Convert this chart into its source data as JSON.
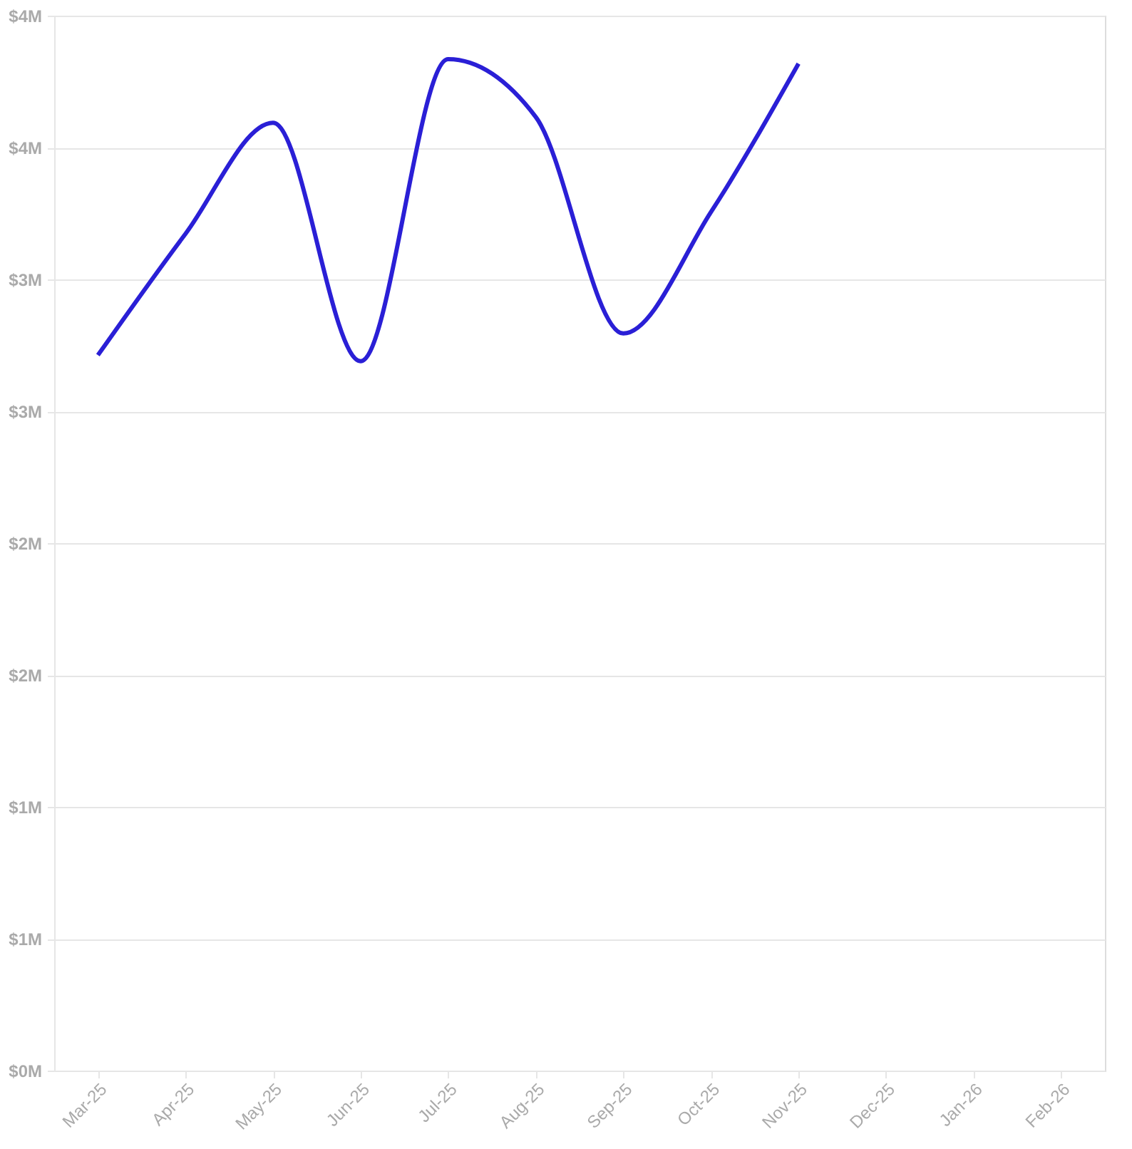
{
  "chart_data": {
    "type": "line",
    "categories": [
      "Mar-25",
      "Apr-25",
      "May-25",
      "Jun-25",
      "Jul-25",
      "Aug-25",
      "Sep-25",
      "Oct-25",
      "Nov-25",
      "Dec-25",
      "Jan-26",
      "Feb-26"
    ],
    "series": [
      {
        "color": "#2a1fd6",
        "values": [
          2713000,
          3173000,
          3594000,
          2690000,
          3835000,
          3616000,
          2795000,
          3255000,
          3818000,
          null,
          null,
          null
        ]
      }
    ],
    "ylim": [
      0,
      4000000
    ],
    "yticks": [
      {
        "value": 0,
        "label": "$0M"
      },
      {
        "value": 500000,
        "label": "$1M"
      },
      {
        "value": 1000000,
        "label": "$1M"
      },
      {
        "value": 1500000,
        "label": "$2M"
      },
      {
        "value": 2000000,
        "label": "$2M"
      },
      {
        "value": 2500000,
        "label": "$3M"
      },
      {
        "value": 3000000,
        "label": "$3M"
      },
      {
        "value": 3500000,
        "label": "$4M"
      },
      {
        "value": 4000000,
        "label": "$4M"
      }
    ],
    "grid": "y",
    "marker": "none",
    "line_style": "solid"
  }
}
